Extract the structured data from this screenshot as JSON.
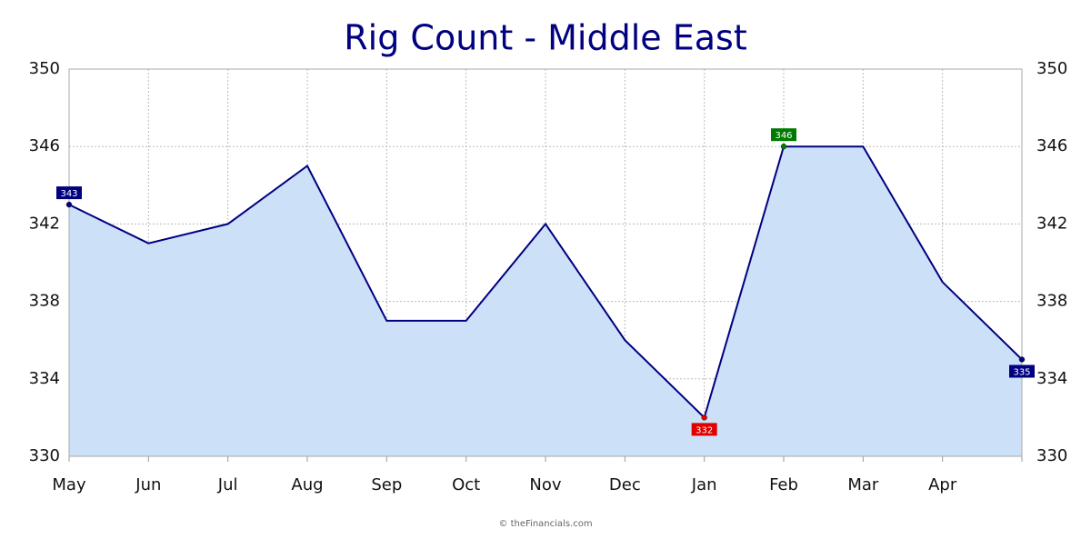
{
  "chart_data": {
    "type": "area",
    "title": "Rig Count - Middle East",
    "categories": [
      "May",
      "Jun",
      "Jul",
      "Aug",
      "Sep",
      "Oct",
      "Nov",
      "Dec",
      "Jan",
      "Feb",
      "Mar",
      "Apr",
      null
    ],
    "values": [
      343,
      341,
      342,
      345,
      337,
      337,
      342,
      336,
      332,
      346,
      346,
      339,
      335
    ],
    "color": "#000080",
    "fill": "#cce0f7",
    "min_color": "#e00000",
    "max_color": "#007a00",
    "ylim": [
      330,
      350
    ],
    "yticks": [
      330,
      334,
      338,
      342,
      346,
      350
    ],
    "grid": true,
    "source": "© theFinancials.com"
  }
}
